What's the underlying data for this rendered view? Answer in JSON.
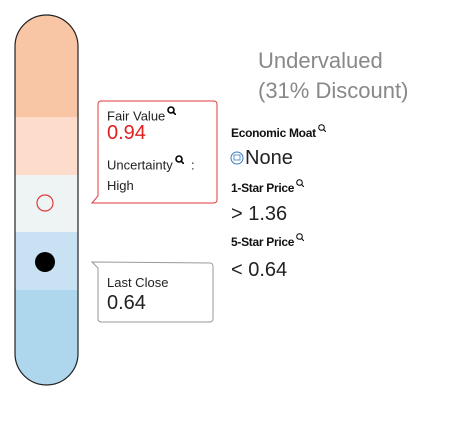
{
  "fair_value": {
    "label": "Fair Value",
    "value": "0.94",
    "uncertainty_label": "Uncertainty",
    "separator": ":",
    "uncertainty": "High"
  },
  "last_close": {
    "label": "Last Close",
    "value": "0.64"
  },
  "summary": {
    "valuation": "Undervalued (31% Discount)"
  },
  "economic_moat": {
    "label": "Economic Moat",
    "value": "None"
  },
  "one_star_price": {
    "label": "1-Star Price",
    "symbol": ">",
    "value": "1.36"
  },
  "five_star_price": {
    "label": "5-Star Price",
    "symbol": "<",
    "value": "0.64"
  }
}
